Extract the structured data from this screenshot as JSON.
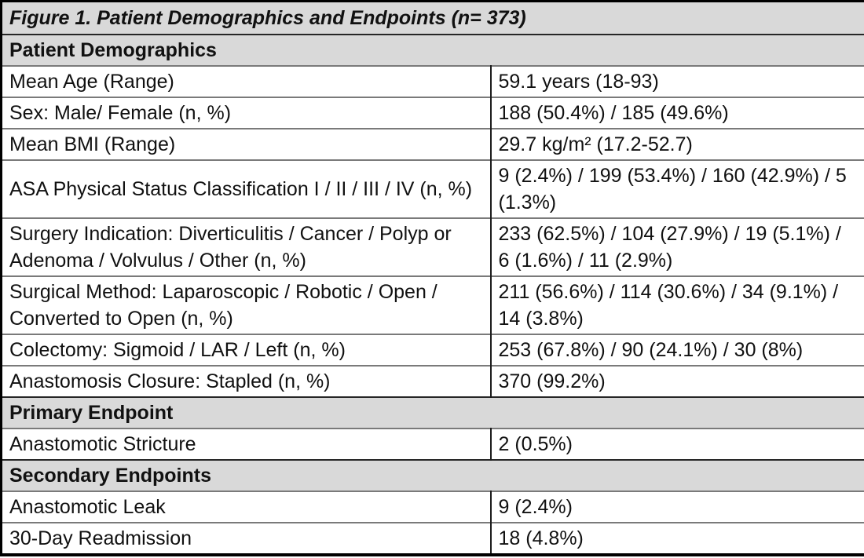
{
  "table": {
    "title": "Figure 1. Patient Demographics and Endpoints (n= 373)",
    "colors": {
      "section_header_bg": "#d9d9d9",
      "outer_border": "#000000",
      "inner_rule": "#7a7a7a",
      "column_divider": "#1c1c1c",
      "text": "#111111",
      "row_bg": "#ffffff"
    },
    "sections": [
      {
        "header": "Patient Demographics",
        "rows": [
          {
            "label": "Mean Age (Range)",
            "value": "59.1 years (18-93)"
          },
          {
            "label": "Sex: Male/ Female (n, %)",
            "value": "188 (50.4%) / 185 (49.6%)"
          },
          {
            "label": "Mean BMI (Range)",
            "value": "29.7 kg/m² (17.2-52.7)"
          },
          {
            "label": "ASA Physical Status Classification I / II / III / IV (n, %)",
            "value": "9 (2.4%) / 199 (53.4%) / 160 (42.9%) / 5 (1.3%)"
          },
          {
            "label": "Surgery Indication: Diverticulitis / Cancer / Polyp or Adenoma / Volvulus / Other (n, %)",
            "value": "233 (62.5%) / 104 (27.9%) / 19 (5.1%) / 6 (1.6%) / 11 (2.9%)"
          },
          {
            "label": "Surgical Method: Laparoscopic / Robotic / Open / Converted to Open (n, %)",
            "value": "211 (56.6%) / 114 (30.6%) / 34 (9.1%) / 14 (3.8%)"
          },
          {
            "label": "Colectomy: Sigmoid / LAR / Left (n, %)",
            "value": "253 (67.8%) / 90 (24.1%) / 30 (8%)"
          },
          {
            "label": "Anastomosis Closure: Stapled (n, %)",
            "value": "370 (99.2%)"
          }
        ]
      },
      {
        "header": "Primary Endpoint",
        "rows": [
          {
            "label": "Anastomotic Stricture",
            "value": "2 (0.5%)"
          }
        ]
      },
      {
        "header": "Secondary Endpoints",
        "rows": [
          {
            "label": "Anastomotic Leak",
            "value": "9 (2.4%)"
          },
          {
            "label": "30-Day Readmission",
            "value": "18 (4.8%)"
          }
        ]
      }
    ]
  }
}
